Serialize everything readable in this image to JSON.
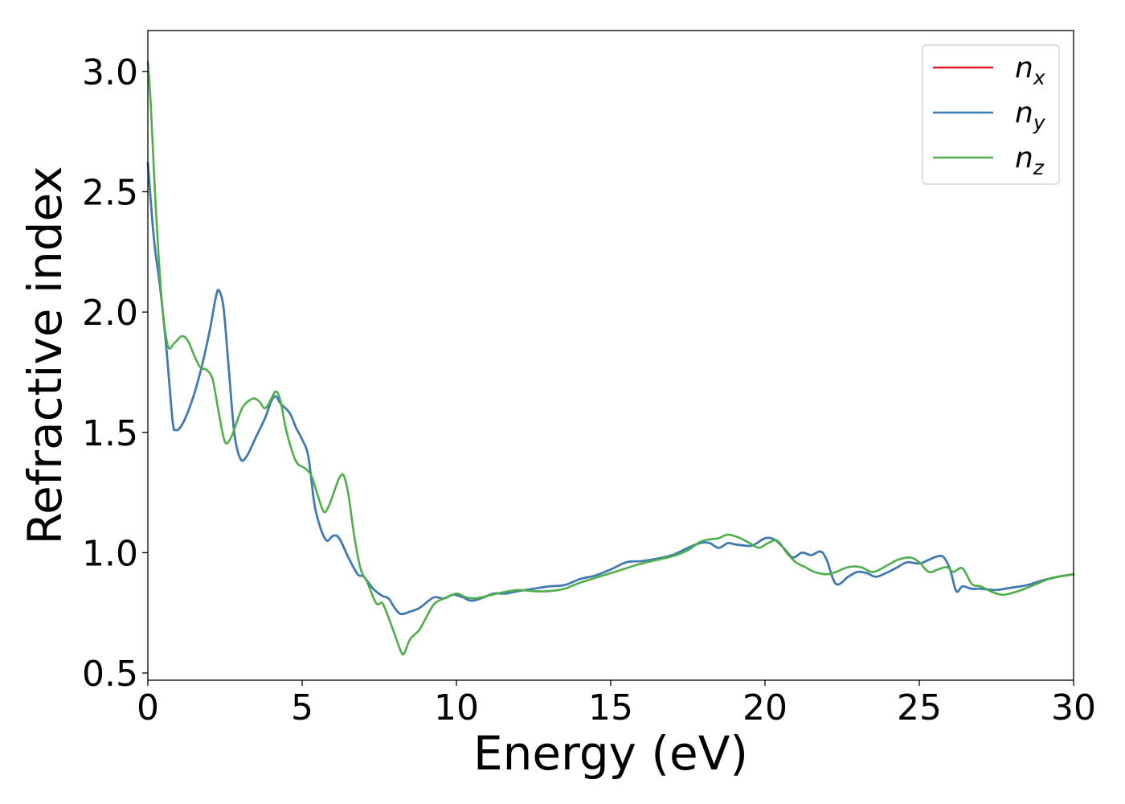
{
  "chart_data": {
    "type": "line",
    "title": "",
    "xlabel": "Energy (eV)",
    "ylabel": "Refractive index",
    "xlim": [
      0,
      30
    ],
    "ylim": [
      0.47,
      3.17
    ],
    "x_ticks": [
      0,
      5,
      10,
      15,
      20,
      25,
      30
    ],
    "y_ticks": [
      0.5,
      1.0,
      1.5,
      2.0,
      2.5,
      3.0
    ],
    "x_tick_labels": [
      "0",
      "5",
      "10",
      "15",
      "20",
      "25",
      "30"
    ],
    "y_tick_labels": [
      "0.5",
      "1.0",
      "1.5",
      "2.0",
      "2.5",
      "3.0"
    ],
    "grid": false,
    "legend_position": "top-right",
    "series": [
      {
        "name": "n_x",
        "legend_base": "n",
        "legend_sub": "x",
        "color": "#e41a1c",
        "points": [
          [
            0,
            2.62
          ],
          [
            0.2,
            2.3
          ],
          [
            0.4,
            2.1
          ],
          [
            0.6,
            1.85
          ],
          [
            0.8,
            1.55
          ],
          [
            0.9,
            1.51
          ],
          [
            1.1,
            1.53
          ],
          [
            1.4,
            1.62
          ],
          [
            1.7,
            1.75
          ],
          [
            2.0,
            1.92
          ],
          [
            2.2,
            2.06
          ],
          [
            2.3,
            2.09
          ],
          [
            2.45,
            2.02
          ],
          [
            2.6,
            1.8
          ],
          [
            2.8,
            1.5
          ],
          [
            3.0,
            1.39
          ],
          [
            3.2,
            1.4
          ],
          [
            3.5,
            1.48
          ],
          [
            3.8,
            1.56
          ],
          [
            4.0,
            1.63
          ],
          [
            4.15,
            1.65
          ],
          [
            4.3,
            1.62
          ],
          [
            4.6,
            1.58
          ],
          [
            4.8,
            1.52
          ],
          [
            5.0,
            1.47
          ],
          [
            5.2,
            1.4
          ],
          [
            5.4,
            1.2
          ],
          [
            5.6,
            1.1
          ],
          [
            5.8,
            1.05
          ],
          [
            6.0,
            1.07
          ],
          [
            6.2,
            1.06
          ],
          [
            6.5,
            0.98
          ],
          [
            6.8,
            0.91
          ],
          [
            7.0,
            0.9
          ],
          [
            7.3,
            0.85
          ],
          [
            7.6,
            0.82
          ],
          [
            7.8,
            0.81
          ],
          [
            8.0,
            0.77
          ],
          [
            8.2,
            0.745
          ],
          [
            8.5,
            0.755
          ],
          [
            8.8,
            0.77
          ],
          [
            9.1,
            0.8
          ],
          [
            9.3,
            0.815
          ],
          [
            9.6,
            0.81
          ],
          [
            9.9,
            0.825
          ],
          [
            10.2,
            0.815
          ],
          [
            10.5,
            0.8
          ],
          [
            10.9,
            0.815
          ],
          [
            11.2,
            0.83
          ],
          [
            11.6,
            0.83
          ],
          [
            12.0,
            0.84
          ],
          [
            12.5,
            0.85
          ],
          [
            13.0,
            0.86
          ],
          [
            13.5,
            0.865
          ],
          [
            14.0,
            0.89
          ],
          [
            14.5,
            0.905
          ],
          [
            15.0,
            0.93
          ],
          [
            15.5,
            0.96
          ],
          [
            16.0,
            0.965
          ],
          [
            16.5,
            0.975
          ],
          [
            17.0,
            0.99
          ],
          [
            17.5,
            1.02
          ],
          [
            17.9,
            1.04
          ],
          [
            18.2,
            1.04
          ],
          [
            18.5,
            1.02
          ],
          [
            18.8,
            1.04
          ],
          [
            19.0,
            1.035
          ],
          [
            19.3,
            1.03
          ],
          [
            19.6,
            1.03
          ],
          [
            20.0,
            1.06
          ],
          [
            20.3,
            1.055
          ],
          [
            20.6,
            1.02
          ],
          [
            20.9,
            0.98
          ],
          [
            21.2,
            1.0
          ],
          [
            21.5,
            0.99
          ],
          [
            21.8,
            1.005
          ],
          [
            22.0,
            0.97
          ],
          [
            22.3,
            0.87
          ],
          [
            22.7,
            0.9
          ],
          [
            23.0,
            0.92
          ],
          [
            23.3,
            0.915
          ],
          [
            23.6,
            0.9
          ],
          [
            24.0,
            0.92
          ],
          [
            24.3,
            0.94
          ],
          [
            24.6,
            0.96
          ],
          [
            25.0,
            0.955
          ],
          [
            25.3,
            0.97
          ],
          [
            25.6,
            0.985
          ],
          [
            25.8,
            0.98
          ],
          [
            26.0,
            0.93
          ],
          [
            26.2,
            0.84
          ],
          [
            26.4,
            0.86
          ],
          [
            26.7,
            0.85
          ],
          [
            27.0,
            0.85
          ],
          [
            27.5,
            0.845
          ],
          [
            28.0,
            0.855
          ],
          [
            28.5,
            0.865
          ],
          [
            29.0,
            0.885
          ],
          [
            29.5,
            0.9
          ],
          [
            30.0,
            0.91
          ]
        ]
      },
      {
        "name": "n_y",
        "legend_base": "n",
        "legend_sub": "y",
        "color": "#377eb8",
        "points": [
          [
            0,
            2.62
          ],
          [
            0.2,
            2.3
          ],
          [
            0.4,
            2.1
          ],
          [
            0.6,
            1.85
          ],
          [
            0.8,
            1.55
          ],
          [
            0.9,
            1.51
          ],
          [
            1.1,
            1.53
          ],
          [
            1.4,
            1.62
          ],
          [
            1.7,
            1.75
          ],
          [
            2.0,
            1.92
          ],
          [
            2.2,
            2.06
          ],
          [
            2.3,
            2.09
          ],
          [
            2.45,
            2.02
          ],
          [
            2.6,
            1.8
          ],
          [
            2.8,
            1.5
          ],
          [
            3.0,
            1.39
          ],
          [
            3.2,
            1.4
          ],
          [
            3.5,
            1.48
          ],
          [
            3.8,
            1.56
          ],
          [
            4.0,
            1.63
          ],
          [
            4.15,
            1.65
          ],
          [
            4.3,
            1.62
          ],
          [
            4.6,
            1.58
          ],
          [
            4.8,
            1.52
          ],
          [
            5.0,
            1.47
          ],
          [
            5.2,
            1.4
          ],
          [
            5.4,
            1.2
          ],
          [
            5.6,
            1.1
          ],
          [
            5.8,
            1.05
          ],
          [
            6.0,
            1.07
          ],
          [
            6.2,
            1.06
          ],
          [
            6.5,
            0.98
          ],
          [
            6.8,
            0.91
          ],
          [
            7.0,
            0.9
          ],
          [
            7.3,
            0.85
          ],
          [
            7.6,
            0.82
          ],
          [
            7.8,
            0.81
          ],
          [
            8.0,
            0.77
          ],
          [
            8.2,
            0.745
          ],
          [
            8.5,
            0.755
          ],
          [
            8.8,
            0.77
          ],
          [
            9.1,
            0.8
          ],
          [
            9.3,
            0.815
          ],
          [
            9.6,
            0.81
          ],
          [
            9.9,
            0.825
          ],
          [
            10.2,
            0.815
          ],
          [
            10.5,
            0.8
          ],
          [
            10.9,
            0.815
          ],
          [
            11.2,
            0.83
          ],
          [
            11.6,
            0.83
          ],
          [
            12.0,
            0.84
          ],
          [
            12.5,
            0.85
          ],
          [
            13.0,
            0.86
          ],
          [
            13.5,
            0.865
          ],
          [
            14.0,
            0.89
          ],
          [
            14.5,
            0.905
          ],
          [
            15.0,
            0.93
          ],
          [
            15.5,
            0.96
          ],
          [
            16.0,
            0.965
          ],
          [
            16.5,
            0.975
          ],
          [
            17.0,
            0.99
          ],
          [
            17.5,
            1.02
          ],
          [
            17.9,
            1.04
          ],
          [
            18.2,
            1.04
          ],
          [
            18.5,
            1.02
          ],
          [
            18.8,
            1.04
          ],
          [
            19.0,
            1.035
          ],
          [
            19.3,
            1.03
          ],
          [
            19.6,
            1.03
          ],
          [
            20.0,
            1.06
          ],
          [
            20.3,
            1.055
          ],
          [
            20.6,
            1.02
          ],
          [
            20.9,
            0.98
          ],
          [
            21.2,
            1.0
          ],
          [
            21.5,
            0.99
          ],
          [
            21.8,
            1.005
          ],
          [
            22.0,
            0.97
          ],
          [
            22.3,
            0.87
          ],
          [
            22.7,
            0.9
          ],
          [
            23.0,
            0.92
          ],
          [
            23.3,
            0.915
          ],
          [
            23.6,
            0.9
          ],
          [
            24.0,
            0.92
          ],
          [
            24.3,
            0.94
          ],
          [
            24.6,
            0.96
          ],
          [
            25.0,
            0.955
          ],
          [
            25.3,
            0.97
          ],
          [
            25.6,
            0.985
          ],
          [
            25.8,
            0.98
          ],
          [
            26.0,
            0.93
          ],
          [
            26.2,
            0.84
          ],
          [
            26.4,
            0.86
          ],
          [
            26.7,
            0.85
          ],
          [
            27.0,
            0.85
          ],
          [
            27.5,
            0.845
          ],
          [
            28.0,
            0.855
          ],
          [
            28.5,
            0.865
          ],
          [
            29.0,
            0.885
          ],
          [
            29.5,
            0.9
          ],
          [
            30.0,
            0.91
          ]
        ]
      },
      {
        "name": "n_z",
        "legend_base": "n",
        "legend_sub": "z",
        "color": "#4daf4a",
        "points": [
          [
            0,
            3.04
          ],
          [
            0.1,
            2.85
          ],
          [
            0.25,
            2.45
          ],
          [
            0.45,
            2.05
          ],
          [
            0.65,
            1.86
          ],
          [
            0.85,
            1.87
          ],
          [
            1.1,
            1.9
          ],
          [
            1.3,
            1.88
          ],
          [
            1.5,
            1.82
          ],
          [
            1.7,
            1.77
          ],
          [
            1.9,
            1.76
          ],
          [
            2.1,
            1.72
          ],
          [
            2.3,
            1.58
          ],
          [
            2.5,
            1.46
          ],
          [
            2.7,
            1.48
          ],
          [
            2.9,
            1.55
          ],
          [
            3.1,
            1.61
          ],
          [
            3.4,
            1.64
          ],
          [
            3.6,
            1.63
          ],
          [
            3.8,
            1.6
          ],
          [
            4.0,
            1.64
          ],
          [
            4.15,
            1.67
          ],
          [
            4.3,
            1.63
          ],
          [
            4.5,
            1.5
          ],
          [
            4.8,
            1.38
          ],
          [
            5.1,
            1.35
          ],
          [
            5.3,
            1.32
          ],
          [
            5.5,
            1.24
          ],
          [
            5.7,
            1.17
          ],
          [
            5.85,
            1.19
          ],
          [
            6.0,
            1.24
          ],
          [
            6.2,
            1.31
          ],
          [
            6.35,
            1.32
          ],
          [
            6.5,
            1.24
          ],
          [
            6.7,
            1.06
          ],
          [
            6.9,
            0.93
          ],
          [
            7.1,
            0.88
          ],
          [
            7.4,
            0.79
          ],
          [
            7.6,
            0.79
          ],
          [
            7.8,
            0.73
          ],
          [
            8.0,
            0.66
          ],
          [
            8.2,
            0.59
          ],
          [
            8.3,
            0.58
          ],
          [
            8.5,
            0.64
          ],
          [
            8.8,
            0.68
          ],
          [
            9.1,
            0.75
          ],
          [
            9.3,
            0.79
          ],
          [
            9.6,
            0.81
          ],
          [
            10.0,
            0.83
          ],
          [
            10.3,
            0.815
          ],
          [
            10.6,
            0.81
          ],
          [
            11.0,
            0.82
          ],
          [
            11.5,
            0.835
          ],
          [
            12.0,
            0.845
          ],
          [
            12.5,
            0.84
          ],
          [
            13.0,
            0.84
          ],
          [
            13.5,
            0.85
          ],
          [
            14.0,
            0.875
          ],
          [
            15.0,
            0.915
          ],
          [
            15.5,
            0.935
          ],
          [
            16.0,
            0.955
          ],
          [
            17.0,
            0.985
          ],
          [
            17.5,
            1.01
          ],
          [
            17.9,
            1.045
          ],
          [
            18.2,
            1.055
          ],
          [
            18.5,
            1.06
          ],
          [
            18.8,
            1.075
          ],
          [
            19.2,
            1.06
          ],
          [
            19.5,
            1.04
          ],
          [
            19.8,
            1.02
          ],
          [
            20.1,
            1.04
          ],
          [
            20.4,
            1.05
          ],
          [
            20.7,
            1.0
          ],
          [
            21.0,
            0.96
          ],
          [
            21.3,
            0.94
          ],
          [
            21.6,
            0.92
          ],
          [
            22.0,
            0.91
          ],
          [
            22.3,
            0.92
          ],
          [
            22.7,
            0.94
          ],
          [
            23.1,
            0.94
          ],
          [
            23.5,
            0.92
          ],
          [
            24.0,
            0.95
          ],
          [
            24.3,
            0.97
          ],
          [
            24.7,
            0.98
          ],
          [
            25.0,
            0.96
          ],
          [
            25.3,
            0.92
          ],
          [
            25.6,
            0.93
          ],
          [
            25.9,
            0.94
          ],
          [
            26.1,
            0.92
          ],
          [
            26.4,
            0.935
          ],
          [
            26.7,
            0.87
          ],
          [
            27.0,
            0.86
          ],
          [
            27.3,
            0.84
          ],
          [
            27.7,
            0.825
          ],
          [
            28.2,
            0.84
          ],
          [
            28.8,
            0.87
          ],
          [
            29.3,
            0.895
          ],
          [
            30.0,
            0.91
          ]
        ]
      }
    ]
  }
}
